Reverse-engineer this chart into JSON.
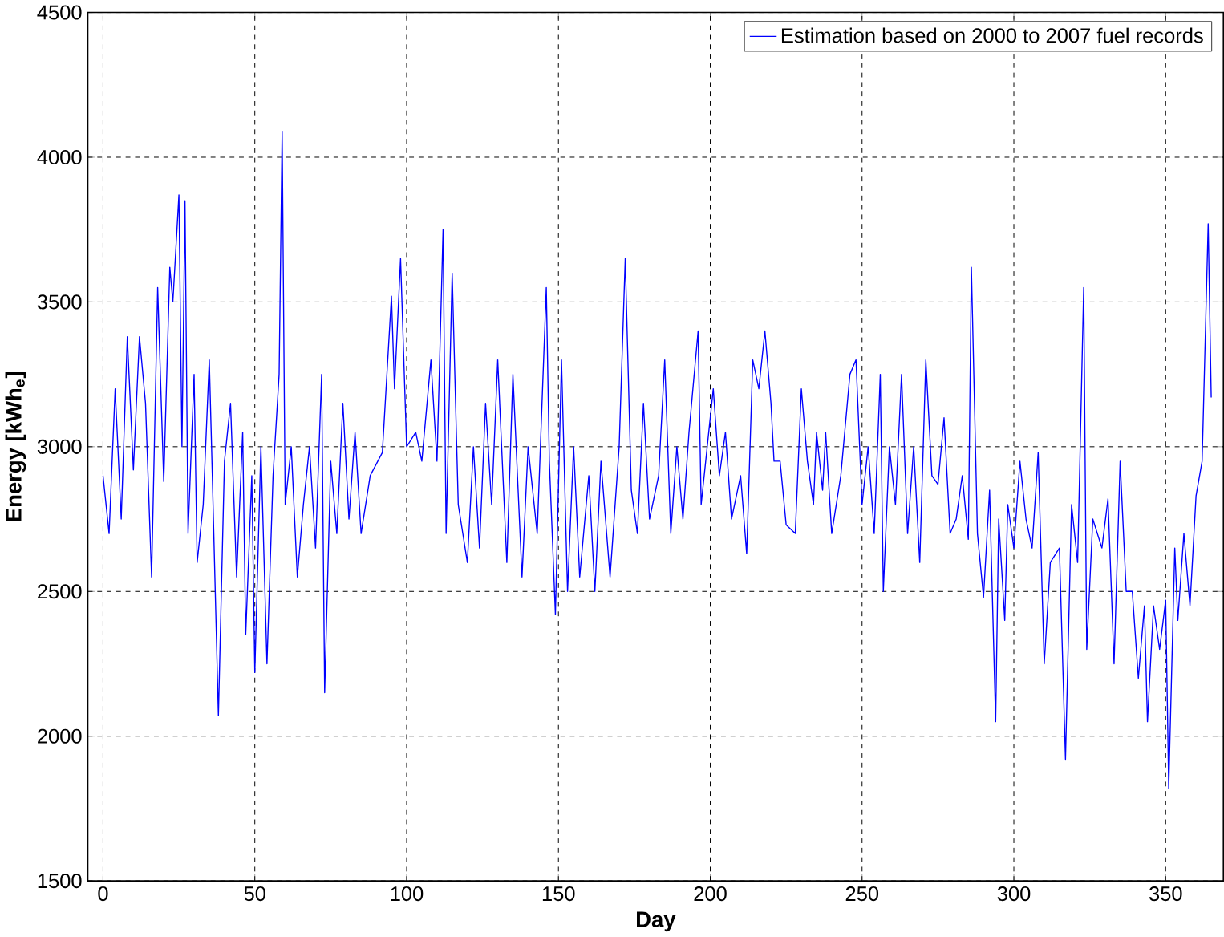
{
  "chart_data": {
    "type": "line",
    "xlabel": "Day",
    "ylabel": "Energy [kWh$_{e}$]",
    "xlim": [
      -5,
      369
    ],
    "ylim": [
      1500,
      4500
    ],
    "xticks": [
      0,
      50,
      100,
      150,
      200,
      250,
      300,
      350
    ],
    "yticks": [
      1500,
      2000,
      2500,
      3000,
      3500,
      4000,
      4500
    ],
    "grid": true,
    "legend": "top right",
    "marker": "none",
    "line_style": "solid",
    "series": [
      {
        "name": "Estimation based on 2000 to 2007 fuel records",
        "color": "#0000ff",
        "x": [
          0,
          2,
          4,
          6,
          8,
          10,
          12,
          14,
          16,
          18,
          20,
          22,
          23,
          25,
          26,
          27,
          28,
          30,
          31,
          33,
          35,
          36,
          38,
          40,
          42,
          44,
          46,
          47,
          49,
          50,
          52,
          54,
          56,
          58,
          59,
          60,
          62,
          64,
          66,
          68,
          70,
          72,
          73,
          75,
          77,
          79,
          81,
          83,
          85,
          88,
          92,
          95,
          96,
          98,
          100,
          103,
          105,
          108,
          110,
          112,
          113,
          115,
          117,
          120,
          122,
          124,
          126,
          128,
          130,
          133,
          135,
          138,
          140,
          143,
          146,
          147,
          149,
          151,
          153,
          155,
          157,
          160,
          162,
          164,
          167,
          170,
          172,
          174,
          176,
          178,
          180,
          183,
          185,
          187,
          189,
          191,
          193,
          196,
          197,
          199,
          201,
          203,
          205,
          207,
          210,
          212,
          214,
          216,
          218,
          220,
          221,
          223,
          225,
          228,
          230,
          232,
          234,
          235,
          237,
          238,
          240,
          243,
          246,
          248,
          250,
          252,
          254,
          256,
          257,
          259,
          261,
          263,
          265,
          267,
          269,
          271,
          273,
          275,
          277,
          279,
          281,
          283,
          285,
          286,
          288,
          290,
          292,
          294,
          295,
          297,
          298,
          300,
          302,
          304,
          306,
          308,
          310,
          312,
          315,
          317,
          319,
          321,
          323,
          324,
          326,
          329,
          331,
          333,
          335,
          337,
          339,
          341,
          343,
          344,
          346,
          348,
          350,
          351,
          353,
          354,
          356,
          358,
          360,
          362,
          364,
          365
        ],
        "values": [
          2900,
          2700,
          3200,
          2750,
          3380,
          2920,
          3380,
          3150,
          2550,
          3550,
          2880,
          3620,
          3500,
          3870,
          3000,
          3850,
          2700,
          3250,
          2600,
          2800,
          3300,
          2900,
          2070,
          2950,
          3150,
          2550,
          3050,
          2350,
          2900,
          2220,
          3000,
          2250,
          2900,
          3250,
          4090,
          2800,
          3000,
          2550,
          2800,
          3000,
          2650,
          3250,
          2150,
          2950,
          2700,
          3150,
          2750,
          3050,
          2700,
          2900,
          2980,
          3520,
          3200,
          3650,
          3000,
          3050,
          2950,
          3300,
          2950,
          3750,
          2700,
          3600,
          2800,
          2600,
          3000,
          2650,
          3150,
          2800,
          3300,
          2600,
          3250,
          2550,
          3000,
          2700,
          3550,
          2950,
          2420,
          3300,
          2500,
          3000,
          2550,
          2900,
          2500,
          2950,
          2550,
          3000,
          3650,
          2850,
          2700,
          3150,
          2750,
          2900,
          3300,
          2700,
          3000,
          2750,
          3050,
          3400,
          2800,
          3000,
          3200,
          2900,
          3050,
          2750,
          2900,
          2630,
          3300,
          3200,
          3400,
          3150,
          2950,
          2950,
          2730,
          2700,
          3200,
          2950,
          2800,
          3050,
          2850,
          3050,
          2700,
          2900,
          3250,
          3300,
          2800,
          3000,
          2700,
          3250,
          2500,
          3000,
          2800,
          3250,
          2700,
          3000,
          2600,
          3300,
          2900,
          2870,
          3100,
          2700,
          2750,
          2900,
          2680,
          3620,
          2700,
          2480,
          2850,
          2050,
          2750,
          2400,
          2800,
          2650,
          2950,
          2750,
          2650,
          2980,
          2250,
          2600,
          2650,
          1920,
          2800,
          2600,
          3550,
          2300,
          2750,
          2650,
          2820,
          2250,
          2950,
          2500,
          2500,
          2200,
          2450,
          2050,
          2450,
          2300,
          2470,
          1820,
          2650,
          2400,
          2700,
          2450,
          2830,
          2950,
          3770,
          3170
        ]
      }
    ]
  }
}
